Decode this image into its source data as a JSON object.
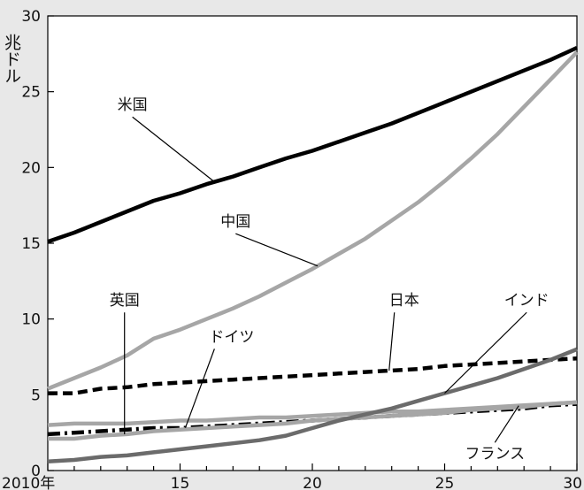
{
  "chart_data": {
    "type": "line",
    "ylabel": "兆ドル",
    "x_tick_labels": [
      "2010年",
      "15",
      "20",
      "25",
      "30"
    ],
    "x_ticks": [
      2010,
      2015,
      2020,
      2025,
      2030
    ],
    "xlim": [
      2010,
      2030
    ],
    "y_ticks": [
      0,
      5,
      10,
      15,
      20,
      25,
      30
    ],
    "ylim": [
      0,
      30
    ],
    "grid": false,
    "background": "#e8e8e8",
    "series": [
      {
        "name": "米国",
        "color": "#000000",
        "dash": "solid",
        "x": [
          2010,
          2011,
          2012,
          2013,
          2014,
          2015,
          2016,
          2017,
          2018,
          2019,
          2020,
          2021,
          2022,
          2023,
          2024,
          2025,
          2026,
          2027,
          2028,
          2029,
          2030
        ],
        "values": [
          15.1,
          15.7,
          16.4,
          17.1,
          17.8,
          18.3,
          18.9,
          19.4,
          20.0,
          20.6,
          21.1,
          21.7,
          22.3,
          22.9,
          23.6,
          24.3,
          25.0,
          25.7,
          26.4,
          27.1,
          27.9
        ]
      },
      {
        "name": "中国",
        "color": "#a6a6a6",
        "dash": "solid",
        "x": [
          2010,
          2011,
          2012,
          2013,
          2014,
          2015,
          2016,
          2017,
          2018,
          2019,
          2020,
          2021,
          2022,
          2023,
          2024,
          2025,
          2026,
          2027,
          2028,
          2029,
          2030
        ],
        "values": [
          5.4,
          6.1,
          6.8,
          7.6,
          8.7,
          9.3,
          10.0,
          10.7,
          11.5,
          12.4,
          13.3,
          14.3,
          15.3,
          16.5,
          17.7,
          19.1,
          20.6,
          22.2,
          24.0,
          25.8,
          27.6
        ]
      },
      {
        "name": "日本",
        "color": "#000000",
        "dash": "dash",
        "x": [
          2010,
          2011,
          2012,
          2013,
          2014,
          2015,
          2016,
          2017,
          2018,
          2019,
          2020,
          2021,
          2022,
          2023,
          2024,
          2025,
          2026,
          2027,
          2028,
          2029,
          2030
        ],
        "values": [
          5.1,
          5.1,
          5.4,
          5.5,
          5.7,
          5.8,
          5.9,
          6.0,
          6.1,
          6.2,
          6.3,
          6.4,
          6.5,
          6.6,
          6.7,
          6.9,
          7.0,
          7.1,
          7.2,
          7.3,
          7.4
        ]
      },
      {
        "name": "ドイツ",
        "color": "#000000",
        "dash": "dashdot",
        "x": [
          2010,
          2011,
          2012,
          2013,
          2014,
          2015,
          2016,
          2017,
          2018,
          2019,
          2020,
          2021,
          2022,
          2023,
          2024,
          2025,
          2026,
          2027,
          2028,
          2029,
          2030
        ],
        "values": [
          2.4,
          2.5,
          2.6,
          2.7,
          2.8,
          2.8,
          2.9,
          3.0,
          3.1,
          3.2,
          3.3,
          3.4,
          3.5,
          3.6,
          3.7,
          3.8,
          3.9,
          4.0,
          4.1,
          4.3,
          4.4
        ]
      },
      {
        "name": "英国",
        "color": "#a6a6a6",
        "dash": "solid",
        "x": [
          2010,
          2011,
          2012,
          2013,
          2014,
          2015,
          2016,
          2017,
          2018,
          2019,
          2020,
          2021,
          2022,
          2023,
          2024,
          2025,
          2026,
          2027,
          2028,
          2029,
          2030
        ],
        "values": [
          2.1,
          2.1,
          2.3,
          2.4,
          2.6,
          2.7,
          2.8,
          2.9,
          3.0,
          3.1,
          3.3,
          3.4,
          3.5,
          3.6,
          3.7,
          3.8,
          4.0,
          4.1,
          4.2,
          4.4,
          4.5
        ]
      },
      {
        "name": "フランス",
        "color": "#a6a6a6",
        "dash": "solid",
        "x": [
          2010,
          2011,
          2012,
          2013,
          2014,
          2015,
          2016,
          2017,
          2018,
          2019,
          2020,
          2021,
          2022,
          2023,
          2024,
          2025,
          2026,
          2027,
          2028,
          2029,
          2030
        ],
        "values": [
          3.0,
          3.1,
          3.1,
          3.1,
          3.2,
          3.3,
          3.3,
          3.4,
          3.5,
          3.5,
          3.6,
          3.7,
          3.8,
          3.9,
          3.9,
          4.0,
          4.1,
          4.2,
          4.3,
          4.4,
          4.5
        ]
      },
      {
        "name": "インド",
        "color": "#6b6b6b",
        "dash": "solid",
        "x": [
          2010,
          2011,
          2012,
          2013,
          2014,
          2015,
          2016,
          2017,
          2018,
          2019,
          2020,
          2021,
          2022,
          2023,
          2024,
          2025,
          2026,
          2027,
          2028,
          2029,
          2030
        ],
        "values": [
          0.6,
          0.7,
          0.9,
          1.0,
          1.2,
          1.4,
          1.6,
          1.8,
          2.0,
          2.3,
          2.8,
          3.3,
          3.7,
          4.1,
          4.6,
          5.1,
          5.6,
          6.1,
          6.7,
          7.3,
          8.0
        ]
      }
    ],
    "annotations": [
      {
        "text": "米国",
        "series": "米国",
        "at_x": 2016.3,
        "label_x": 2013.2,
        "label_y": 23.8,
        "anchor": "middle"
      },
      {
        "text": "中国",
        "series": "中国",
        "at_x": 2020.2,
        "label_x": 2017.1,
        "label_y": 16.1,
        "anchor": "middle"
      },
      {
        "text": "日本",
        "series": "日本",
        "at_x": 2022.9,
        "label_x": 2022.9,
        "label_y": 10.9,
        "anchor": "start"
      },
      {
        "text": "インド",
        "series": "インド",
        "at_x": 2025.0,
        "label_x": 2028.1,
        "label_y": 10.9,
        "anchor": "middle"
      },
      {
        "text": "英国",
        "series": "英国",
        "at_x": 2012.9,
        "label_x": 2012.9,
        "label_y": 10.9,
        "anchor": "middle"
      },
      {
        "text": "ドイツ",
        "series": "ドイツ",
        "at_x": 2015.2,
        "label_x": 2016.1,
        "label_y": 8.5,
        "anchor": "start"
      },
      {
        "text": "フランス",
        "series": "フランス",
        "at_x": 2027.8,
        "label_x": 2026.9,
        "label_y": 0.8,
        "anchor": "middle"
      }
    ]
  }
}
